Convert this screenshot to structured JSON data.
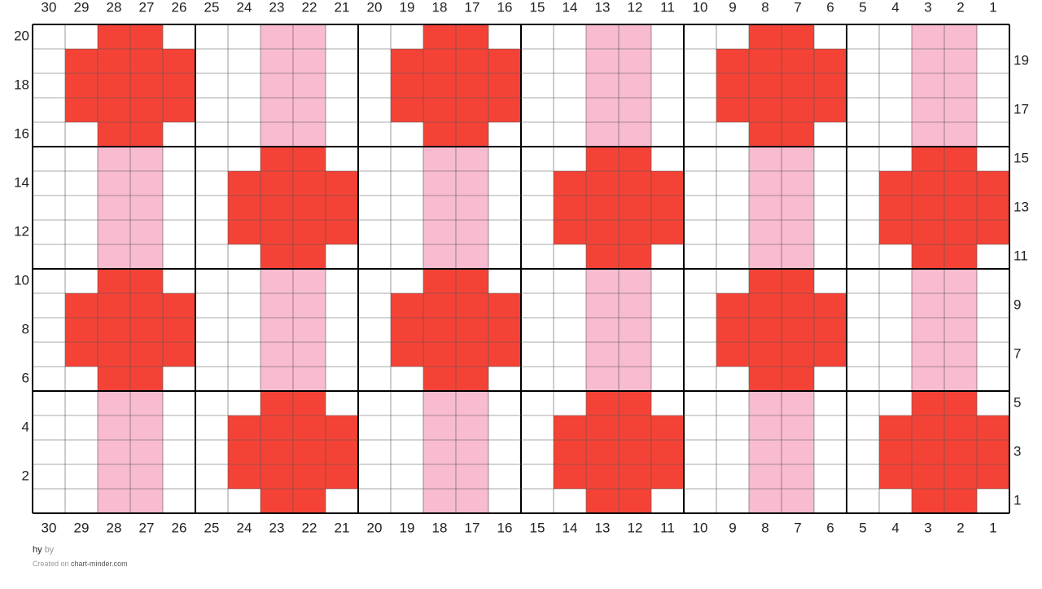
{
  "columns": [
    30,
    29,
    28,
    27,
    26,
    25,
    24,
    23,
    22,
    21,
    20,
    19,
    18,
    17,
    16,
    15,
    14,
    13,
    12,
    11,
    10,
    9,
    8,
    7,
    6,
    5,
    4,
    3,
    2,
    1
  ],
  "rows_left": [
    20,
    18,
    16,
    14,
    12,
    10,
    8,
    6,
    4,
    2
  ],
  "rows_right": [
    19,
    17,
    15,
    13,
    11,
    9,
    7,
    5,
    3,
    1
  ],
  "footer": {
    "title": "hy",
    "by": "by",
    "created_on": "Created on",
    "site": "chart-minder.com"
  }
}
